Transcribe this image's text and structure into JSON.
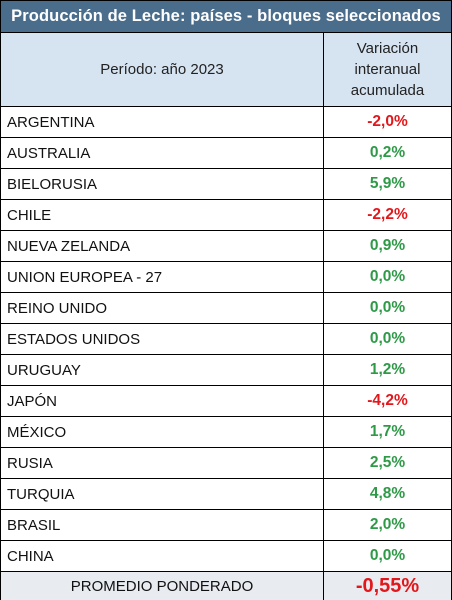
{
  "title": "Producción de Leche: países - bloques seleccionados",
  "header": {
    "col1": "Período: año 2023",
    "col2_lines": [
      "Variación",
      "interanual",
      "acumulada"
    ]
  },
  "colors": {
    "title_bg": "#4a6d8c",
    "header_bg": "#d6e4f2",
    "positive": "#2e9a47",
    "negative": "#e3171b"
  },
  "chart_data": {
    "type": "table",
    "title": "Producción de Leche: países - bloques seleccionados",
    "columns": [
      "Período: año 2023",
      "Variación interanual acumulada"
    ],
    "rows": [
      {
        "label": "ARGENTINA",
        "value": "-2,0%",
        "number": -2.0
      },
      {
        "label": "AUSTRALIA",
        "value": "0,2%",
        "number": 0.2
      },
      {
        "label": "BIELORUSIA",
        "value": "5,9%",
        "number": 5.9
      },
      {
        "label": "CHILE",
        "value": "-2,2%",
        "number": -2.2
      },
      {
        "label": "NUEVA ZELANDA",
        "value": "0,9%",
        "number": 0.9
      },
      {
        "label": "UNION EUROPEA - 27",
        "value": "0,0%",
        "number": 0.0
      },
      {
        "label": "REINO UNIDO",
        "value": "0,0%",
        "number": 0.0
      },
      {
        "label": "ESTADOS UNIDOS",
        "value": "0,0%",
        "number": 0.0
      },
      {
        "label": "URUGUAY",
        "value": "1,2%",
        "number": 1.2
      },
      {
        "label": "JAPÓN",
        "value": "-4,2%",
        "number": -4.2
      },
      {
        "label": "MÉXICO",
        "value": "1,7%",
        "number": 1.7
      },
      {
        "label": "RUSIA",
        "value": "2,5%",
        "number": 2.5
      },
      {
        "label": "TURQUIA",
        "value": "4,8%",
        "number": 4.8
      },
      {
        "label": "BRASIL",
        "value": "2,0%",
        "number": 2.0
      },
      {
        "label": "CHINA",
        "value": "0,0%",
        "number": 0.0
      }
    ],
    "footer": {
      "label": "PROMEDIO PONDERADO",
      "value": "-0,55%",
      "number": -0.55
    }
  }
}
